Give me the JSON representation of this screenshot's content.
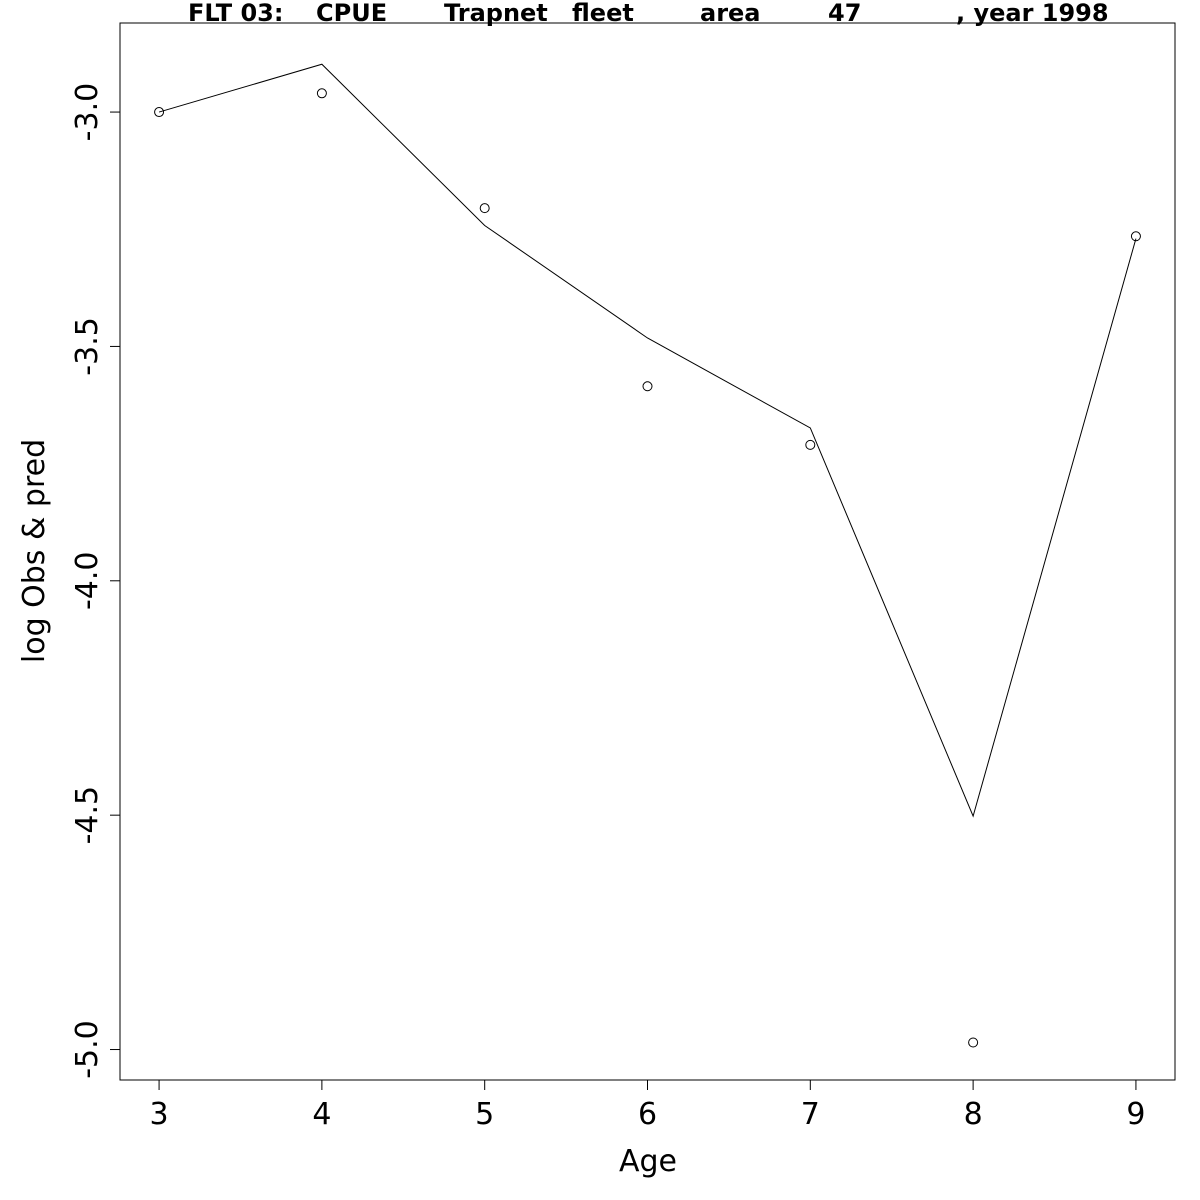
{
  "chart_data": {
    "type": "line",
    "title_parts": [
      "FLT 03:",
      "CPUE",
      "Trapnet",
      "fleet",
      "area",
      "47",
      ", year 1998"
    ],
    "xlabel": "Age",
    "ylabel": "log Obs & pred",
    "x": [
      3,
      4,
      5,
      6,
      7,
      8,
      9
    ],
    "xlim": [
      2.76,
      9.24
    ],
    "ylim": [
      -5.065,
      -2.81
    ],
    "x_ticks": [
      3,
      4,
      5,
      6,
      7,
      8,
      9
    ],
    "x_tick_labels": [
      "3",
      "4",
      "5",
      "6",
      "7",
      "8",
      "9"
    ],
    "y_ticks": [
      -3.0,
      -3.5,
      -4.0,
      -4.5,
      -5.0
    ],
    "y_tick_labels": [
      "-3.0",
      "-3.5",
      "-4.0",
      "-4.5",
      "-5.0"
    ],
    "grid": false,
    "series": [
      {
        "style": "points",
        "values": [
          -3.0,
          -2.96,
          -3.205,
          -3.585,
          -3.71,
          -4.985,
          -3.265
        ]
      },
      {
        "style": "line",
        "values": [
          -3.0,
          -2.898,
          -3.242,
          -3.482,
          -3.674,
          -4.502,
          -3.27
        ]
      }
    ]
  }
}
